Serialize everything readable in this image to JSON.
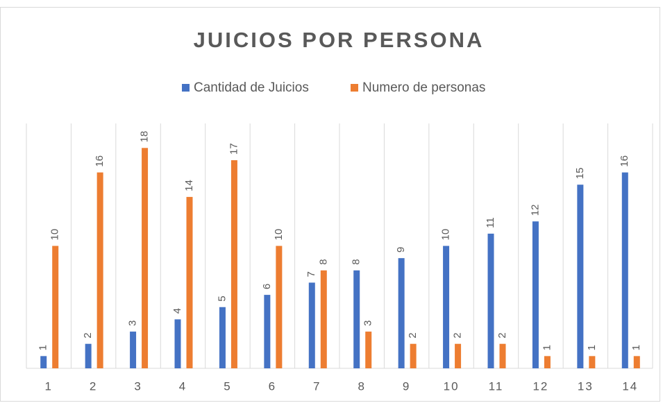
{
  "chart_data": {
    "type": "bar",
    "title": "JUICIOS POR PERSONA",
    "categories": [
      "1",
      "2",
      "3",
      "4",
      "5",
      "6",
      "7",
      "8",
      "9",
      "10",
      "11",
      "12",
      "13",
      "14"
    ],
    "series": [
      {
        "name": "Cantidad de Juicios",
        "color": "#4472c4",
        "values": [
          1,
          2,
          3,
          4,
          5,
          6,
          7,
          8,
          9,
          10,
          11,
          12,
          15,
          16
        ]
      },
      {
        "name": "Numero de personas",
        "color": "#ed7d31",
        "values": [
          10,
          16,
          18,
          14,
          17,
          10,
          8,
          3,
          2,
          2,
          2,
          1,
          1,
          1
        ]
      }
    ],
    "ylim": [
      0,
      20
    ],
    "grid": true
  }
}
